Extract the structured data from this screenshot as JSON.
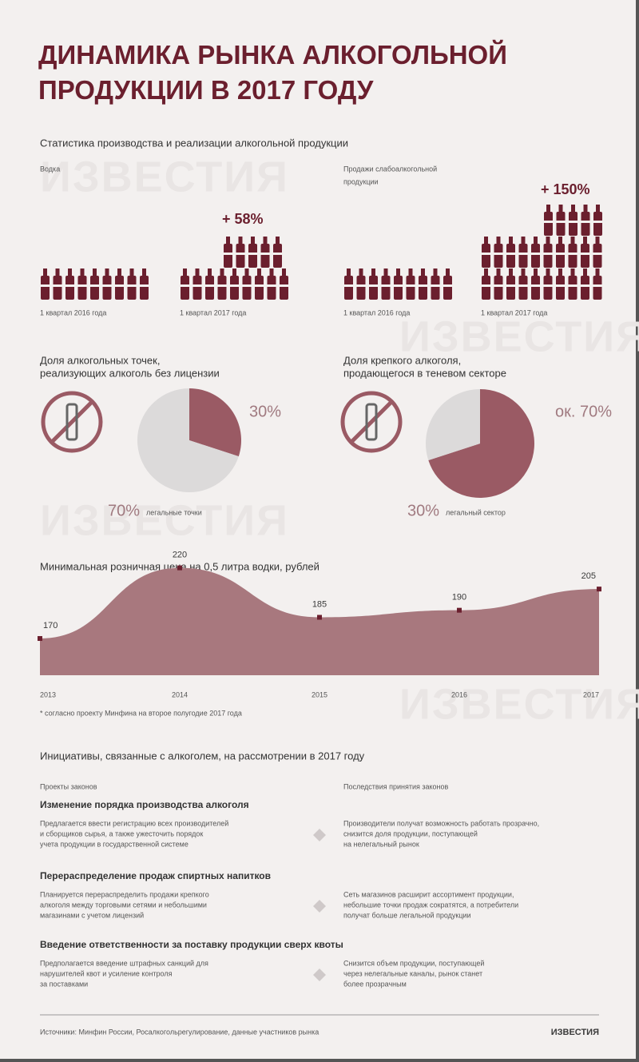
{
  "title": [
    "ДИНАМИКА РЫНКА АЛКОГОЛЬНОЙ",
    "ПРОДУКЦИИ В 2017 ГОДУ"
  ],
  "subtitle": "Статистика производства и реализации алкогольной продукции",
  "watermark": "ИЗВЕСТИЯ",
  "production": [
    {
      "heading": [
        "Водка"
      ],
      "change": "+ 58%",
      "captions": [
        "1 квартал 2016 года",
        "1 квартал 2017 года"
      ]
    },
    {
      "heading": [
        "Продажи слабоалкогольной",
        "продукции"
      ],
      "change": "+ 150%",
      "captions": [
        "1 квартал 2016 года",
        "1 квартал 2017 года"
      ]
    }
  ],
  "chart_data": [
    {
      "type": "pie",
      "title": [
        "Доля алкогольных точек,",
        "реализующих алкоголь без лицензии"
      ],
      "categories": [
        null,
        "легальные точки"
      ],
      "values": [
        30,
        70
      ],
      "value_labels": [
        "30%",
        "70%"
      ],
      "colors": [
        "#9a5a64",
        "#dcdada"
      ]
    },
    {
      "type": "pie",
      "title": [
        "Доля крепкого алкоголя,",
        "продающегося в теневом секторе"
      ],
      "categories": [
        null,
        "легальный сектор"
      ],
      "values": [
        70,
        30
      ],
      "value_labels": [
        "ок. 70%",
        "30%"
      ],
      "colors": [
        "#9a5a64",
        "#dcdada"
      ]
    },
    {
      "type": "area",
      "title": [
        "Минимальная розничная цена на 0,5 литра водки, рублей"
      ],
      "categories": [
        "2013",
        "2014",
        "2015",
        "2016",
        "2017"
      ],
      "values": [
        170,
        220,
        185,
        190,
        205
      ],
      "color": "#a8787e",
      "ylim": [
        144,
        226
      ],
      "footnote": "* согласно проекту Минфина на второе полугодие 2017 года"
    }
  ],
  "initiatives": {
    "title": "Инициативы, связанные с алкоголем, на рассмотрении в 2017 году",
    "columns": [
      "Проекты законов",
      "Последствия принятия законов"
    ],
    "rows": [
      {
        "heading": "Изменение порядка производства алкоголя",
        "left": [
          "Предлагается ввести регистрацию всех производителей",
          "и сборщиков сырья, а также ужесточить порядок",
          "учета продукции в государственной системе"
        ],
        "right": [
          "Производители получат возможность работать прозрачно,",
          "снизится доля продукции, поступающей",
          "на нелегальный рынок"
        ]
      },
      {
        "heading": "Перераспределение продаж спиртных напитков",
        "left": [
          "Планируется перераспределить продажи крепкого",
          "алкоголя между торговыми сетями и небольшими",
          "магазинами с учетом лицензий"
        ],
        "right": [
          "Сеть магазинов расширит ассортимент продукции,",
          "небольшие точки продаж сократятся, а потребители",
          "получат больше легальной продукции"
        ]
      },
      {
        "heading": "Введение ответственности за поставку продукции сверх квоты",
        "left": [
          "Предполагается введение штрафных санкций для",
          "нарушителей квот и усиление контроля",
          "за поставками"
        ],
        "right": [
          "Снизится объем продукции, поступающей",
          "через нелегальные каналы, рынок станет",
          "более прозрачным"
        ]
      }
    ]
  },
  "source": "Источники: Минфин России, Росалкогольрегулирование, данные участников рынка",
  "logo": "ИЗВЕСТИЯ"
}
